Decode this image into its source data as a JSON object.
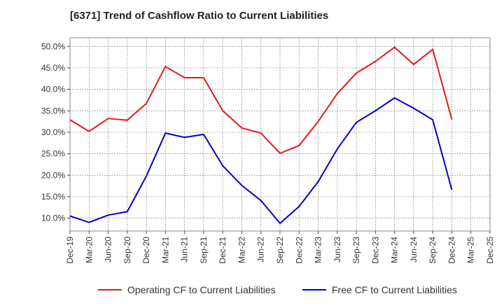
{
  "chart_data": {
    "type": "line",
    "title": "[6371]  Trend of Cashflow Ratio to Current Liabilities",
    "xlabel": "",
    "ylabel": "",
    "x": [
      "Dec-19",
      "Mar-20",
      "Jun-20",
      "Sep-20",
      "Dec-20",
      "Mar-21",
      "Jun-21",
      "Sep-21",
      "Dec-21",
      "Mar-22",
      "Jun-22",
      "Sep-22",
      "Dec-22",
      "Mar-23",
      "Jun-23",
      "Sep-23",
      "Dec-23",
      "Mar-24",
      "Jun-24",
      "Sep-24",
      "Dec-24"
    ],
    "x_ticks": [
      "Dec-19",
      "Mar-20",
      "Jun-20",
      "Sep-20",
      "Dec-20",
      "Mar-21",
      "Jun-21",
      "Sep-21",
      "Dec-21",
      "Mar-22",
      "Jun-22",
      "Sep-22",
      "Dec-22",
      "Mar-23",
      "Jun-23",
      "Sep-23",
      "Dec-23",
      "Mar-24",
      "Jun-24",
      "Sep-24",
      "Dec-24",
      "Mar-25",
      "Dec-25"
    ],
    "y_ticks": [
      "10.0%",
      "15.0%",
      "20.0%",
      "25.0%",
      "30.0%",
      "35.0%",
      "40.0%",
      "45.0%",
      "50.0%"
    ],
    "y_tick_values": [
      10,
      15,
      20,
      25,
      30,
      35,
      40,
      45,
      50
    ],
    "ylim": [
      7,
      52
    ],
    "grid": true,
    "legend_position": "bottom",
    "series": [
      {
        "name": "Operating CF to Current Liabilities",
        "color": "#e31a1c",
        "values": [
          32.9,
          30.2,
          33.2,
          32.8,
          36.7,
          45.3,
          42.7,
          42.7,
          35.0,
          31.0,
          29.8,
          25.1,
          26.9,
          32.5,
          39.0,
          43.8,
          46.5,
          49.8,
          45.8,
          49.3,
          33.0
        ]
      },
      {
        "name": "Free CF to Current Liabilities",
        "color": "#0000cc",
        "values": [
          10.5,
          9.0,
          10.7,
          11.5,
          19.8,
          29.8,
          28.8,
          29.5,
          22.2,
          17.6,
          14.1,
          8.8,
          12.7,
          18.5,
          26.1,
          32.3,
          35.0,
          38.0,
          35.6,
          32.9,
          16.6
        ]
      }
    ]
  }
}
